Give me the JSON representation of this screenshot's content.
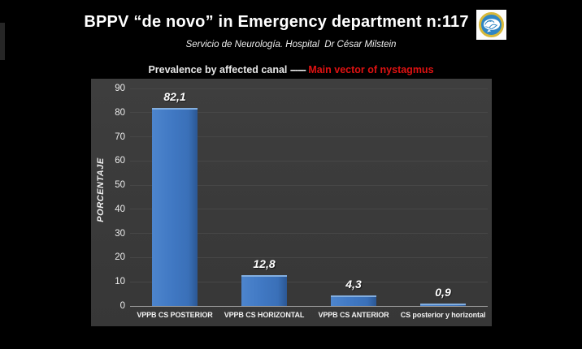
{
  "slide": {
    "title": "BPPV “de novo” in Emergency department  n:117",
    "subtitle": "Servicio de Neurología. Hospital  Dr César Milstein"
  },
  "heading": {
    "left": "Prevalence by affected canal ",
    "dashes": "------",
    "right": " Main vector of nystagmus",
    "right_color": "#e01212"
  },
  "chart_data": {
    "type": "bar",
    "title": "Prevalence by affected canal ------ Main vector of nystagmus",
    "categories": [
      "VPPB CS POSTERIOR",
      "VPPB CS HORIZONTAL",
      "VPPB CS ANTERIOR",
      "CS posterior y horizontal"
    ],
    "values": [
      82.1,
      12.8,
      4.3,
      0.9
    ],
    "value_labels": [
      "82,1",
      "12,8",
      "4,3",
      "0,9"
    ],
    "xlabel": "",
    "ylabel": "PORCENTAJE",
    "ylim": [
      0,
      90
    ],
    "yticks": [
      0,
      10,
      20,
      30,
      40,
      50,
      60,
      70,
      80,
      90
    ],
    "grid": true,
    "legend": false,
    "colors": {
      "bar": "#4078c3",
      "bar_highlight": "#83afe0",
      "bar_shadow": "#2b5793",
      "panel_bg": "#3a3a3a",
      "gridline": "#474747",
      "axis_line": "#9a9a9a",
      "slide_bg": "#000000"
    }
  },
  "logo": {
    "name": "brain-logo",
    "ring_color": "#d8b93a",
    "circle_color": "#2f86c4"
  }
}
